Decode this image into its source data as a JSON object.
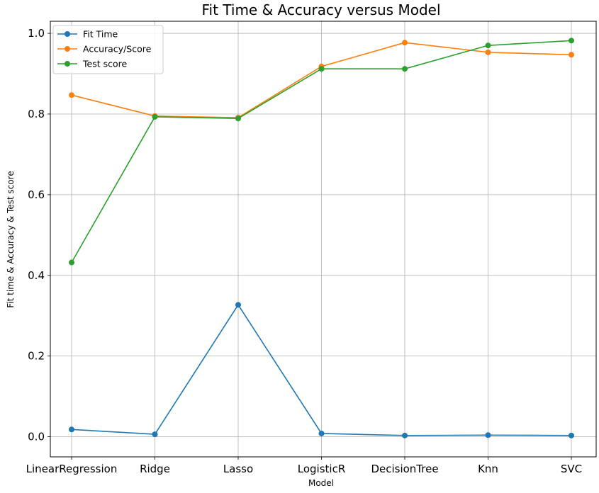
{
  "chart_data": {
    "type": "line",
    "title": "Fit Time & Accuracy versus Model",
    "xlabel": "Model",
    "ylabel": "Fit time & Accuracy & Test score",
    "categories": [
      "LinearRegression",
      "Ridge",
      "Lasso",
      "LogisticR",
      "DecisionTree",
      "Knn",
      "SVC"
    ],
    "ylim": [
      -0.05,
      1.03
    ],
    "yticks": [
      0.0,
      0.2,
      0.4,
      0.6,
      0.8,
      1.0
    ],
    "ytick_labels": [
      "0.0",
      "0.2",
      "0.4",
      "0.6",
      "0.8",
      "1.0"
    ],
    "grid": true,
    "legend_position": "top-left",
    "series": [
      {
        "name": "Fit Time",
        "color": "#1f77b4",
        "values": [
          0.018,
          0.006,
          0.327,
          0.008,
          0.003,
          0.004,
          0.003
        ]
      },
      {
        "name": "Accuracy/Score",
        "color": "#ff7f0e",
        "values": [
          0.847,
          0.795,
          0.791,
          0.918,
          0.977,
          0.953,
          0.947
        ]
      },
      {
        "name": "Test score",
        "color": "#2ca02c",
        "values": [
          0.432,
          0.793,
          0.789,
          0.912,
          0.912,
          0.97,
          0.982
        ]
      }
    ]
  }
}
